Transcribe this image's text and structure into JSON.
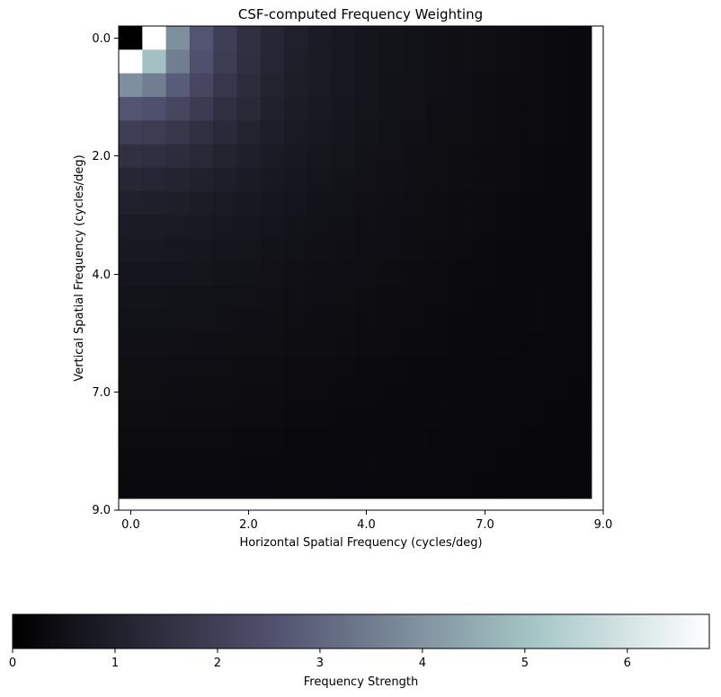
{
  "chart_data": {
    "type": "heatmap",
    "title": "CSF-computed Frequency Weighting",
    "xlabel": "Horizontal Spatial Frequency (cycles/deg)",
    "ylabel": "Vertical Spatial Frequency (cycles/deg)",
    "x_ticks": [
      "0.0",
      "2.0",
      "4.0",
      "7.0",
      "9.0"
    ],
    "y_ticks": [
      "0.0",
      "2.0",
      "4.0",
      "7.0",
      "9.0"
    ],
    "grid": false,
    "colormap": "bone",
    "colorbar": {
      "label": "Frequency Strength",
      "orientation": "horizontal",
      "placement": "bottom",
      "range": [
        0,
        6.8
      ],
      "ticks": [
        "0",
        "1",
        "2",
        "3",
        "4",
        "5",
        "6"
      ]
    },
    "rows": 20,
    "cols": 20,
    "values": [
      [
        0.0,
        6.8,
        3.9,
        2.6,
        1.95,
        1.5,
        1.2,
        1.0,
        0.85,
        0.75,
        0.67,
        0.6,
        0.55,
        0.5,
        0.46,
        0.43,
        0.4,
        0.37,
        0.35,
        0.33
      ],
      [
        6.8,
        5.0,
        3.5,
        2.5,
        1.9,
        1.48,
        1.18,
        0.98,
        0.84,
        0.74,
        0.66,
        0.59,
        0.54,
        0.5,
        0.46,
        0.43,
        0.4,
        0.37,
        0.35,
        0.33
      ],
      [
        3.9,
        3.5,
        2.8,
        2.2,
        1.72,
        1.38,
        1.12,
        0.94,
        0.81,
        0.72,
        0.64,
        0.58,
        0.53,
        0.49,
        0.45,
        0.42,
        0.39,
        0.37,
        0.35,
        0.33
      ],
      [
        2.6,
        2.5,
        2.2,
        1.85,
        1.52,
        1.25,
        1.04,
        0.89,
        0.78,
        0.69,
        0.62,
        0.56,
        0.52,
        0.48,
        0.44,
        0.41,
        0.39,
        0.36,
        0.34,
        0.32
      ],
      [
        1.95,
        1.9,
        1.72,
        1.52,
        1.3,
        1.1,
        0.95,
        0.83,
        0.73,
        0.65,
        0.59,
        0.54,
        0.5,
        0.46,
        0.43,
        0.4,
        0.38,
        0.36,
        0.34,
        0.32
      ],
      [
        1.5,
        1.48,
        1.38,
        1.25,
        1.1,
        0.97,
        0.85,
        0.76,
        0.68,
        0.62,
        0.56,
        0.52,
        0.48,
        0.44,
        0.41,
        0.39,
        0.37,
        0.35,
        0.33,
        0.31
      ],
      [
        1.2,
        1.18,
        1.12,
        1.04,
        0.95,
        0.85,
        0.77,
        0.69,
        0.63,
        0.58,
        0.53,
        0.49,
        0.46,
        0.43,
        0.4,
        0.38,
        0.36,
        0.34,
        0.32,
        0.31
      ],
      [
        1.0,
        0.98,
        0.94,
        0.89,
        0.83,
        0.76,
        0.69,
        0.63,
        0.58,
        0.54,
        0.5,
        0.47,
        0.44,
        0.41,
        0.39,
        0.37,
        0.35,
        0.33,
        0.31,
        0.3
      ],
      [
        0.85,
        0.84,
        0.81,
        0.78,
        0.73,
        0.68,
        0.63,
        0.58,
        0.54,
        0.51,
        0.48,
        0.45,
        0.42,
        0.4,
        0.38,
        0.36,
        0.34,
        0.32,
        0.31,
        0.3
      ],
      [
        0.75,
        0.74,
        0.72,
        0.69,
        0.65,
        0.62,
        0.58,
        0.54,
        0.51,
        0.48,
        0.45,
        0.43,
        0.41,
        0.39,
        0.37,
        0.35,
        0.33,
        0.32,
        0.3,
        0.29
      ],
      [
        0.67,
        0.66,
        0.64,
        0.62,
        0.59,
        0.56,
        0.53,
        0.5,
        0.48,
        0.45,
        0.43,
        0.41,
        0.39,
        0.37,
        0.35,
        0.34,
        0.32,
        0.31,
        0.3,
        0.29
      ],
      [
        0.6,
        0.59,
        0.58,
        0.56,
        0.54,
        0.52,
        0.49,
        0.47,
        0.45,
        0.43,
        0.41,
        0.39,
        0.37,
        0.36,
        0.34,
        0.33,
        0.32,
        0.3,
        0.29,
        0.28
      ],
      [
        0.55,
        0.54,
        0.53,
        0.52,
        0.5,
        0.48,
        0.46,
        0.44,
        0.42,
        0.41,
        0.39,
        0.37,
        0.36,
        0.35,
        0.33,
        0.32,
        0.31,
        0.3,
        0.29,
        0.28
      ],
      [
        0.5,
        0.5,
        0.49,
        0.48,
        0.46,
        0.44,
        0.43,
        0.41,
        0.4,
        0.39,
        0.37,
        0.36,
        0.35,
        0.34,
        0.32,
        0.31,
        0.3,
        0.29,
        0.28,
        0.27
      ],
      [
        0.46,
        0.46,
        0.45,
        0.44,
        0.43,
        0.41,
        0.4,
        0.39,
        0.38,
        0.37,
        0.35,
        0.34,
        0.33,
        0.32,
        0.31,
        0.3,
        0.29,
        0.28,
        0.28,
        0.27
      ],
      [
        0.43,
        0.43,
        0.42,
        0.41,
        0.4,
        0.39,
        0.38,
        0.37,
        0.36,
        0.35,
        0.34,
        0.33,
        0.32,
        0.31,
        0.3,
        0.29,
        0.28,
        0.28,
        0.27,
        0.26
      ],
      [
        0.4,
        0.4,
        0.39,
        0.39,
        0.38,
        0.37,
        0.36,
        0.35,
        0.34,
        0.33,
        0.32,
        0.32,
        0.31,
        0.3,
        0.29,
        0.28,
        0.28,
        0.27,
        0.26,
        0.26
      ],
      [
        0.37,
        0.37,
        0.37,
        0.36,
        0.36,
        0.35,
        0.34,
        0.33,
        0.32,
        0.32,
        0.31,
        0.3,
        0.3,
        0.29,
        0.28,
        0.28,
        0.27,
        0.26,
        0.26,
        0.25
      ],
      [
        0.35,
        0.35,
        0.35,
        0.34,
        0.34,
        0.33,
        0.32,
        0.31,
        0.31,
        0.3,
        0.3,
        0.29,
        0.29,
        0.28,
        0.28,
        0.27,
        0.26,
        0.26,
        0.25,
        0.25
      ],
      [
        0.33,
        0.33,
        0.33,
        0.32,
        0.32,
        0.31,
        0.31,
        0.3,
        0.3,
        0.29,
        0.29,
        0.28,
        0.28,
        0.27,
        0.27,
        0.26,
        0.26,
        0.25,
        0.25,
        0.24
      ]
    ]
  }
}
